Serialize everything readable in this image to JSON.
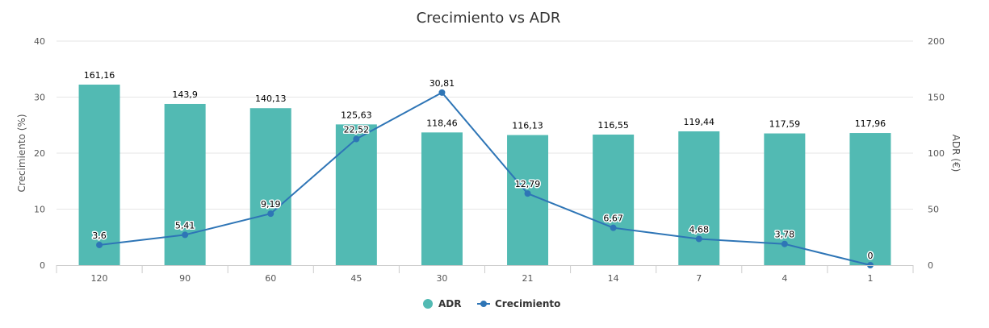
{
  "chart_data": {
    "type": "bar",
    "title": "Crecimiento vs ADR",
    "categories": [
      "120",
      "90",
      "60",
      "45",
      "30",
      "21",
      "14",
      "7",
      "4",
      "1"
    ],
    "y_left": {
      "label": "Crecimiento (%)",
      "ylim": [
        0,
        40
      ],
      "ticks": [
        "0",
        "10",
        "20",
        "30",
        "40"
      ]
    },
    "y_right": {
      "label": "ADR (€)",
      "ylim": [
        0,
        200
      ],
      "ticks": [
        "0",
        "50",
        "100",
        "150",
        "200"
      ]
    },
    "series": [
      {
        "name": "ADR",
        "type": "bar",
        "axis": "right",
        "color": "#52bab3",
        "values": [
          161.16,
          143.9,
          140.13,
          125.63,
          118.46,
          116.13,
          116.55,
          119.44,
          117.59,
          117.96
        ],
        "labels": [
          "161,16",
          "143,9",
          "140,13",
          "125,63",
          "118,46",
          "116,13",
          "116,55",
          "119,44",
          "117,59",
          "117,96"
        ]
      },
      {
        "name": "Crecimiento",
        "type": "line",
        "axis": "left",
        "color": "#2e75b6",
        "values": [
          3.6,
          5.41,
          9.19,
          22.52,
          30.81,
          12.79,
          6.67,
          4.68,
          3.78,
          0
        ],
        "labels": [
          "3,6",
          "5,41",
          "9,19",
          "22,52",
          "30,81",
          "12,79",
          "6,67",
          "4,68",
          "3,78",
          "0"
        ]
      }
    ],
    "grid": true,
    "legend": "bottom-center"
  }
}
